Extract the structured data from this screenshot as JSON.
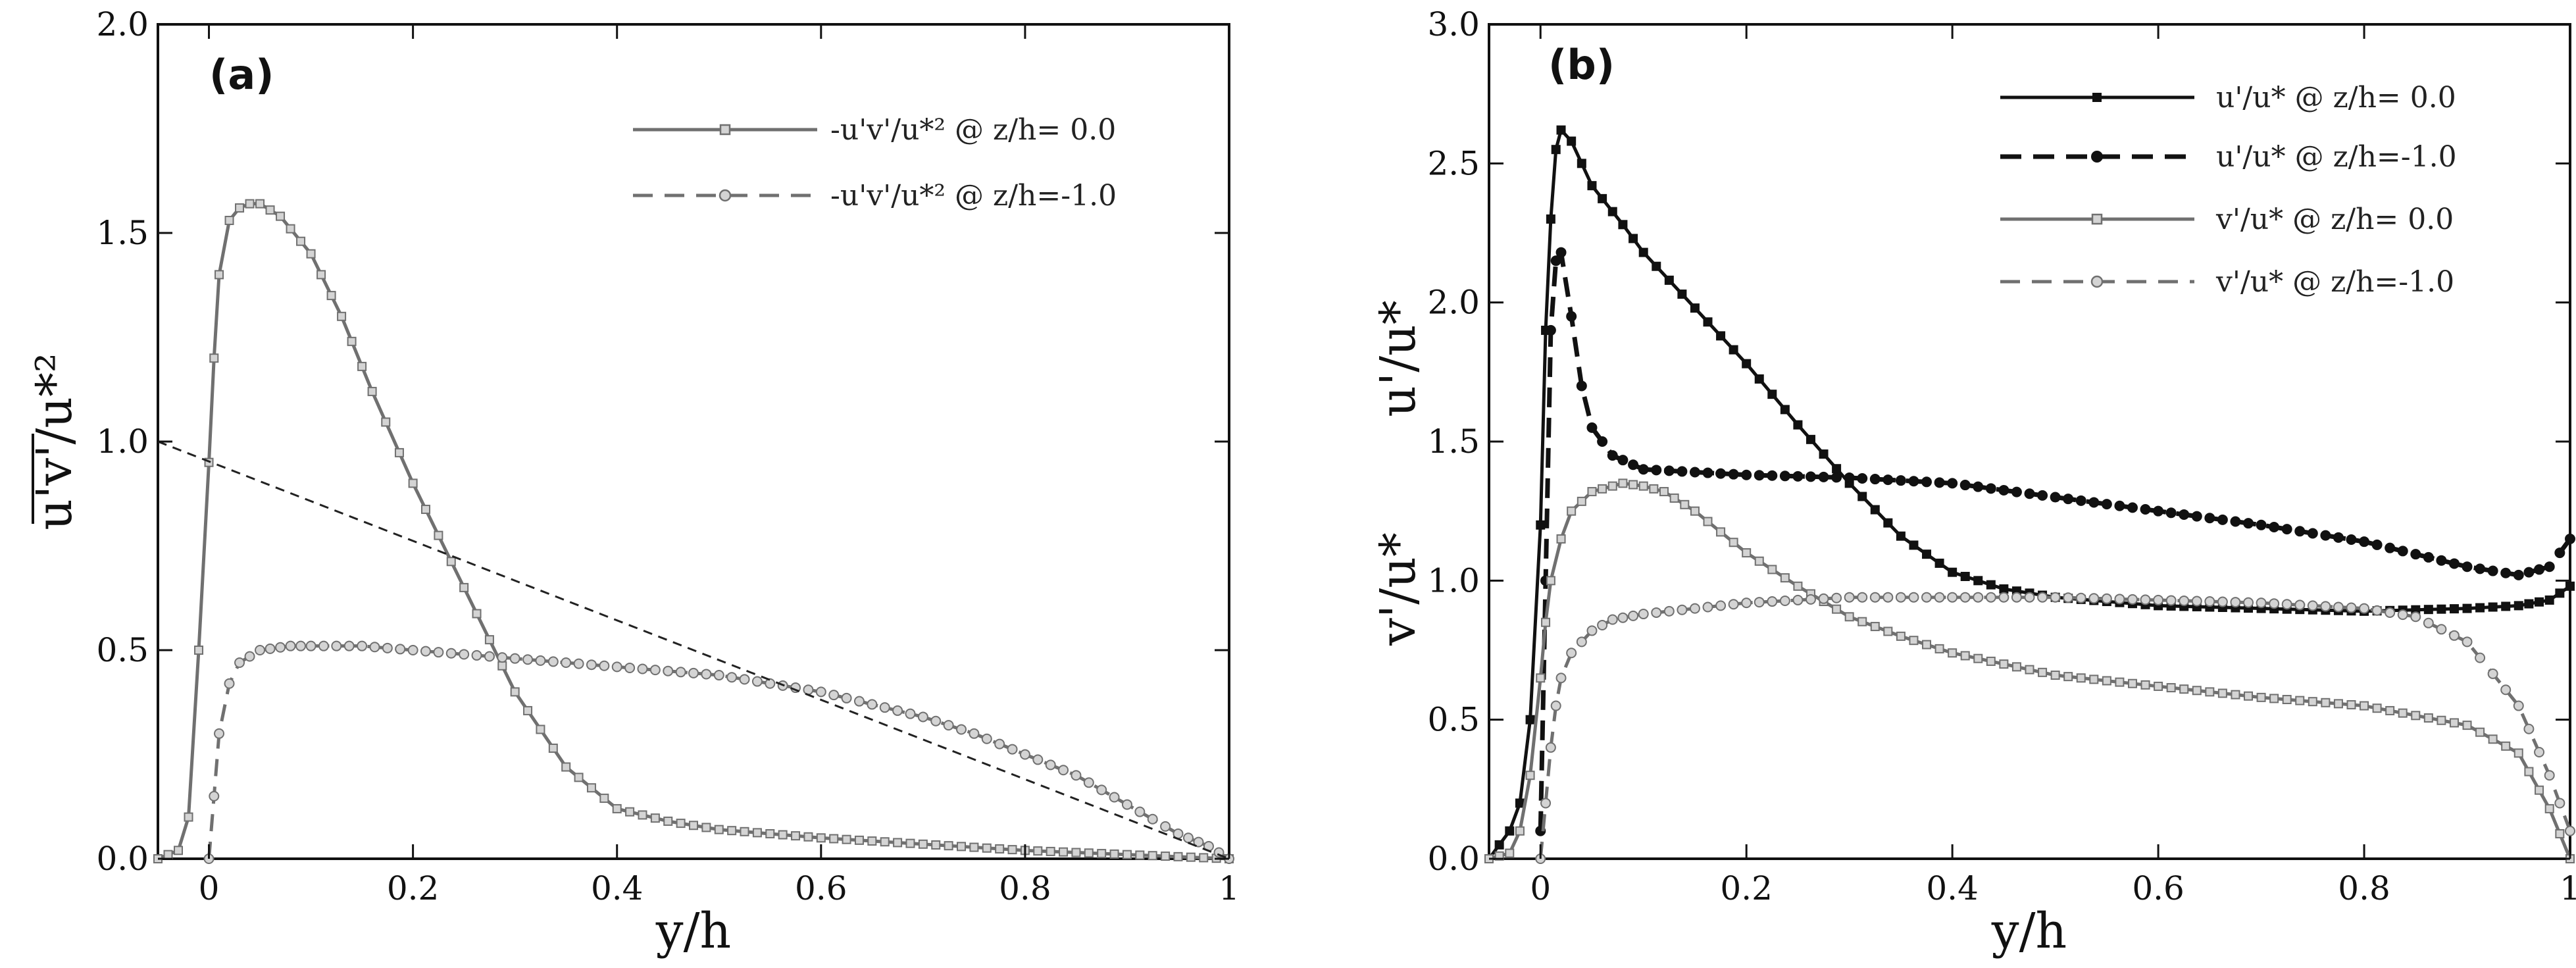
{
  "colors": {
    "black": "#111111",
    "gray_line": "#707070",
    "gray_marker_fill": "#d4d4d4",
    "ref_line": "#222222"
  },
  "chart_data": [
    {
      "panel_label": "(a)",
      "type": "line",
      "xlabel": "y/h",
      "ylabel": "u'v'/u*²",
      "xlim": [
        -0.05,
        1.0
      ],
      "ylim": [
        0.0,
        2.0
      ],
      "xticks": [
        {
          "value": 0,
          "label": "0"
        },
        {
          "value": 0.2,
          "label": "0.2"
        },
        {
          "value": 0.4,
          "label": "0.4"
        },
        {
          "value": 0.6,
          "label": "0.6"
        },
        {
          "value": 0.8,
          "label": "0.8"
        },
        {
          "value": 1.0,
          "label": "1"
        }
      ],
      "yticks": [
        {
          "value": 0.0,
          "label": "0.0"
        },
        {
          "value": 0.5,
          "label": "0.5"
        },
        {
          "value": 1.0,
          "label": "1.0"
        },
        {
          "value": 1.5,
          "label": "1.5"
        },
        {
          "value": 2.0,
          "label": "2.0"
        }
      ],
      "legend_position": "top-right",
      "series": [
        {
          "name": "-u'v'/u*² @ z/h= 0.0",
          "style": "solid-gray-square",
          "x": [
            -0.05,
            -0.03,
            -0.02,
            -0.01,
            0.0,
            0.005,
            0.01,
            0.02,
            0.03,
            0.04,
            0.05,
            0.07,
            0.1,
            0.13,
            0.16,
            0.2,
            0.25,
            0.3,
            0.35,
            0.4,
            0.45,
            0.5,
            0.55,
            0.6,
            0.7,
            0.8,
            0.9,
            0.95,
            1.0
          ],
          "y": [
            0.0,
            0.02,
            0.1,
            0.5,
            0.95,
            1.2,
            1.4,
            1.53,
            1.56,
            1.57,
            1.57,
            1.54,
            1.45,
            1.3,
            1.12,
            0.9,
            0.65,
            0.4,
            0.22,
            0.12,
            0.09,
            0.07,
            0.06,
            0.05,
            0.035,
            0.02,
            0.01,
            0.005,
            0.0
          ]
        },
        {
          "name": "-u'v'/u*² @ z/h=-1.0",
          "style": "dashed-gray-circle",
          "x": [
            0.0,
            0.005,
            0.01,
            0.02,
            0.03,
            0.05,
            0.08,
            0.1,
            0.15,
            0.2,
            0.25,
            0.3,
            0.35,
            0.4,
            0.45,
            0.5,
            0.55,
            0.6,
            0.65,
            0.7,
            0.75,
            0.8,
            0.85,
            0.9,
            0.95,
            0.98,
            1.0
          ],
          "y": [
            0.0,
            0.15,
            0.3,
            0.42,
            0.47,
            0.5,
            0.51,
            0.51,
            0.51,
            0.5,
            0.49,
            0.48,
            0.47,
            0.46,
            0.45,
            0.44,
            0.42,
            0.4,
            0.37,
            0.34,
            0.3,
            0.25,
            0.2,
            0.13,
            0.06,
            0.03,
            0.0
          ]
        },
        {
          "name": "reference 1 - y/h",
          "style": "fine-dashed-black",
          "in_legend": false,
          "x": [
            -0.05,
            1.0
          ],
          "y": [
            1.0,
            0.0
          ]
        }
      ]
    },
    {
      "panel_label": "(b)",
      "type": "line",
      "xlabel": "y/h",
      "ylabel_top": "u'/u*",
      "ylabel_bottom": "v'/u*",
      "xlim": [
        -0.05,
        1.0
      ],
      "ylim": [
        0.0,
        3.0
      ],
      "xticks": [
        {
          "value": 0,
          "label": "0"
        },
        {
          "value": 0.2,
          "label": "0.2"
        },
        {
          "value": 0.4,
          "label": "0.4"
        },
        {
          "value": 0.6,
          "label": "0.6"
        },
        {
          "value": 0.8,
          "label": "0.8"
        },
        {
          "value": 1.0,
          "label": "1"
        }
      ],
      "yticks": [
        {
          "value": 0.0,
          "label": "0.0"
        },
        {
          "value": 0.5,
          "label": "0.5"
        },
        {
          "value": 1.0,
          "label": "1.0"
        },
        {
          "value": 1.5,
          "label": "1.5"
        },
        {
          "value": 2.0,
          "label": "2.0"
        },
        {
          "value": 2.5,
          "label": "2.5"
        },
        {
          "value": 3.0,
          "label": "3.0"
        }
      ],
      "legend_position": "top-right",
      "series": [
        {
          "name": "u'/u* @ z/h= 0.0",
          "style": "solid-black-square",
          "x": [
            -0.05,
            -0.03,
            -0.02,
            -0.01,
            0.0,
            0.005,
            0.01,
            0.015,
            0.02,
            0.03,
            0.05,
            0.08,
            0.1,
            0.15,
            0.2,
            0.25,
            0.3,
            0.35,
            0.4,
            0.45,
            0.5,
            0.6,
            0.7,
            0.8,
            0.9,
            0.95,
            0.98,
            1.0
          ],
          "y": [
            0.0,
            0.1,
            0.2,
            0.5,
            1.2,
            1.9,
            2.3,
            2.55,
            2.62,
            2.58,
            2.42,
            2.28,
            2.18,
            1.98,
            1.78,
            1.56,
            1.35,
            1.16,
            1.03,
            0.97,
            0.94,
            0.91,
            0.9,
            0.89,
            0.9,
            0.91,
            0.93,
            0.98
          ]
        },
        {
          "name": "u'/u* @ z/h=-1.0",
          "style": "dashed-black-circle",
          "x": [
            0.0,
            0.005,
            0.01,
            0.015,
            0.02,
            0.03,
            0.04,
            0.05,
            0.07,
            0.1,
            0.15,
            0.2,
            0.3,
            0.4,
            0.5,
            0.6,
            0.7,
            0.8,
            0.9,
            0.95,
            0.98,
            1.0
          ],
          "y": [
            0.1,
            1.0,
            1.9,
            2.15,
            2.18,
            1.95,
            1.7,
            1.55,
            1.45,
            1.4,
            1.39,
            1.38,
            1.37,
            1.35,
            1.3,
            1.25,
            1.2,
            1.14,
            1.05,
            1.02,
            1.05,
            1.15
          ]
        },
        {
          "name": "v'/u* @ z/h= 0.0",
          "style": "solid-gray-square",
          "x": [
            -0.05,
            -0.03,
            -0.02,
            -0.01,
            0.0,
            0.005,
            0.01,
            0.02,
            0.03,
            0.05,
            0.08,
            0.1,
            0.12,
            0.15,
            0.2,
            0.25,
            0.3,
            0.35,
            0.4,
            0.5,
            0.6,
            0.7,
            0.8,
            0.9,
            0.95,
            0.98,
            1.0
          ],
          "y": [
            0.0,
            0.02,
            0.1,
            0.3,
            0.65,
            0.85,
            1.0,
            1.15,
            1.25,
            1.32,
            1.35,
            1.34,
            1.32,
            1.25,
            1.1,
            0.98,
            0.87,
            0.8,
            0.74,
            0.66,
            0.62,
            0.58,
            0.55,
            0.48,
            0.38,
            0.18,
            0.0
          ]
        },
        {
          "name": "v'/u* @ z/h=-1.0",
          "style": "dashed-gray-circle",
          "x": [
            0.0,
            0.005,
            0.01,
            0.015,
            0.02,
            0.03,
            0.05,
            0.07,
            0.1,
            0.15,
            0.2,
            0.3,
            0.4,
            0.5,
            0.6,
            0.7,
            0.8,
            0.85,
            0.9,
            0.95,
            0.98,
            1.0
          ],
          "y": [
            0.0,
            0.2,
            0.4,
            0.55,
            0.65,
            0.74,
            0.82,
            0.86,
            0.88,
            0.9,
            0.92,
            0.94,
            0.94,
            0.94,
            0.93,
            0.92,
            0.9,
            0.87,
            0.78,
            0.55,
            0.3,
            0.1
          ]
        }
      ]
    }
  ]
}
